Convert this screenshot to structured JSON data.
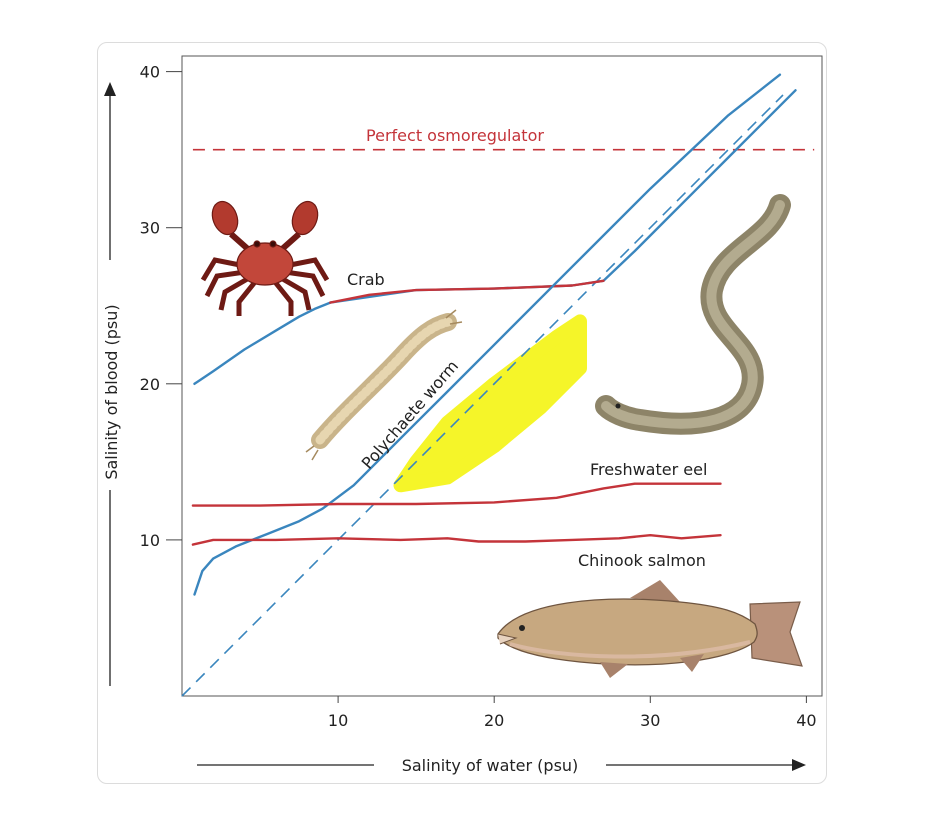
{
  "chart_data": {
    "type": "line",
    "title": "",
    "xlabel": "Salinity of water (psu)",
    "ylabel": "Salinity of blood (psu)",
    "xlim": [
      0,
      41
    ],
    "ylim": [
      0,
      41
    ],
    "xticks": [
      10,
      20,
      30,
      40
    ],
    "yticks": [
      10,
      20,
      30,
      40
    ],
    "grid": false,
    "reference": {
      "name": "Perfect osmoregulator",
      "label": "Perfect osmoregulator",
      "y": 35,
      "x_range": [
        0.7,
        40.5
      ],
      "color": "#c4343a",
      "style": "dashed"
    },
    "isoline": {
      "name": "Salinity of blood = salinity of water",
      "points": [
        [
          0,
          0
        ],
        [
          38.5,
          38.5
        ]
      ],
      "color": "#3a86be",
      "style": "dashed"
    },
    "series": [
      {
        "name": "Crab",
        "label": "Crab",
        "color": "#3a86be",
        "points": [
          [
            0.8,
            20
          ],
          [
            2,
            20.8
          ],
          [
            4,
            22.2
          ],
          [
            6,
            23.4
          ],
          [
            7.5,
            24.3
          ],
          [
            8.5,
            24.8
          ],
          [
            9.5,
            25.2
          ],
          [
            15,
            26
          ],
          [
            20,
            26.1
          ],
          [
            25,
            26.3
          ],
          [
            27,
            26.6
          ],
          [
            29,
            28.5
          ],
          [
            31,
            30.5
          ],
          [
            33,
            32.5
          ],
          [
            35,
            34.5
          ],
          [
            37,
            36.5
          ],
          [
            39.3,
            38.8
          ]
        ]
      },
      {
        "name": "Crab (regulated segment)",
        "label": "",
        "color": "#c4343a",
        "points": [
          [
            9.5,
            25.2
          ],
          [
            12,
            25.7
          ],
          [
            15,
            26
          ],
          [
            20,
            26.1
          ],
          [
            25,
            26.3
          ],
          [
            27,
            26.6
          ]
        ]
      },
      {
        "name": "Polychaete worm",
        "label": "Polychaete worm",
        "color": "#3a86be",
        "points": [
          [
            0.8,
            6.5
          ],
          [
            1.3,
            8
          ],
          [
            2,
            8.8
          ],
          [
            3.5,
            9.6
          ],
          [
            5.5,
            10.4
          ],
          [
            7.5,
            11.2
          ],
          [
            9,
            12
          ],
          [
            11,
            13.5
          ],
          [
            13,
            15.5
          ],
          [
            15,
            17.5
          ],
          [
            17,
            19.5
          ],
          [
            20,
            22.5
          ],
          [
            25,
            27.5
          ],
          [
            30,
            32.5
          ],
          [
            35,
            37.2
          ],
          [
            38.3,
            39.8
          ]
        ]
      },
      {
        "name": "Freshwater eel",
        "label": "Freshwater eel",
        "color": "#c4343a",
        "points": [
          [
            0.7,
            12.2
          ],
          [
            5,
            12.2
          ],
          [
            10,
            12.3
          ],
          [
            15,
            12.3
          ],
          [
            20,
            12.4
          ],
          [
            24,
            12.7
          ],
          [
            27,
            13.3
          ],
          [
            29,
            13.6
          ],
          [
            32,
            13.6
          ],
          [
            34.5,
            13.6
          ]
        ]
      },
      {
        "name": "Chinook salmon",
        "label": "Chinook salmon",
        "color": "#c4343a",
        "points": [
          [
            0.7,
            9.7
          ],
          [
            2,
            10
          ],
          [
            6,
            10
          ],
          [
            10,
            10.1
          ],
          [
            14,
            10
          ],
          [
            17,
            10.1
          ],
          [
            19,
            9.9
          ],
          [
            22,
            9.9
          ],
          [
            25,
            10
          ],
          [
            28,
            10.1
          ],
          [
            30,
            10.3
          ],
          [
            32,
            10.1
          ],
          [
            34.5,
            10.3
          ]
        ]
      }
    ],
    "annotations": [
      {
        "name": "highlight",
        "type": "freehand-highlight",
        "color": "#f5f51e",
        "points": [
          [
            14,
            13.5
          ],
          [
            17,
            14
          ],
          [
            20,
            16
          ],
          [
            23,
            18.5
          ],
          [
            25.5,
            21
          ],
          [
            25.5,
            24
          ],
          [
            24,
            23
          ],
          [
            20,
            20
          ],
          [
            17,
            17.5
          ],
          [
            15,
            15
          ],
          [
            14,
            13.5
          ]
        ]
      }
    ]
  },
  "icons": [
    "crab-icon",
    "polychaete-worm-icon",
    "eel-icon",
    "salmon-icon"
  ]
}
